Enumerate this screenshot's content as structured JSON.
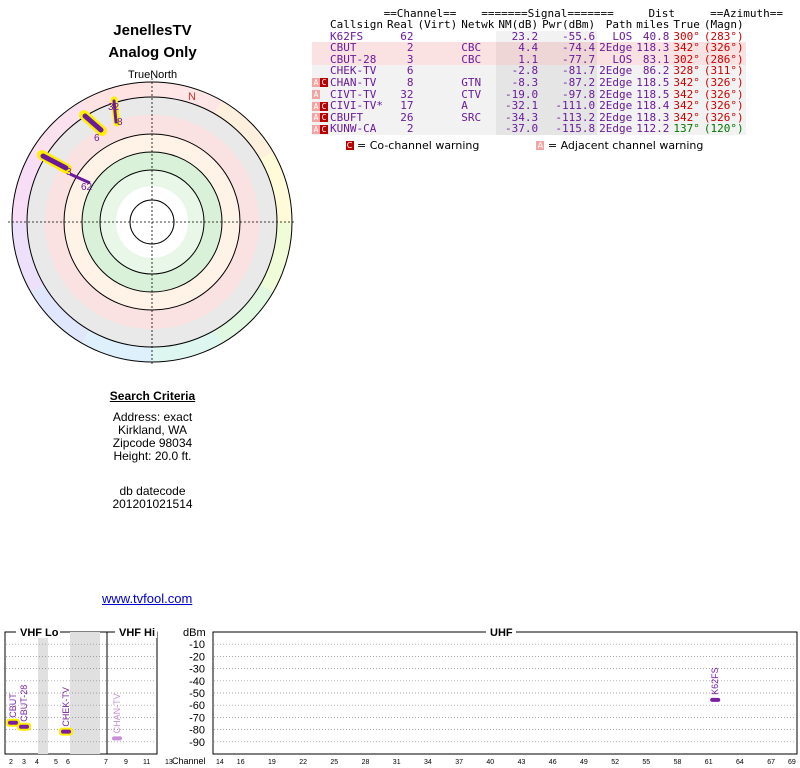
{
  "title": {
    "line1": "JenellesTV",
    "line2": "Analog Only"
  },
  "radar": {
    "north_label": "TrueNorth",
    "n_marker": "N"
  },
  "table": {
    "header_groups": {
      "channel": "==Channel==",
      "signal": "=======Signal=======",
      "dist": "Dist",
      "azimuth": "==Azimuth=="
    },
    "columns": [
      "Callsign",
      "Real",
      "(Virt)",
      "Netwk",
      "NM(dB)",
      "Pwr(dBm)",
      "Path",
      "miles",
      "True",
      "(Magn)"
    ],
    "rows": [
      {
        "warn": "",
        "callsign": "K62FS",
        "real": "62",
        "virt": "",
        "netwk": "",
        "nm": "23.2",
        "pwr": "-55.6",
        "path": "LOS",
        "dist": "40.8",
        "az_true": "300°",
        "az_magn": "(283°)",
        "bg": "#ffffff",
        "az_color": "#cc0000"
      },
      {
        "warn": "",
        "callsign": "CBUT",
        "real": "2",
        "virt": "",
        "netwk": "CBC",
        "nm": "4.4",
        "pwr": "-74.4",
        "path": "2Edge",
        "dist": "118.3",
        "az_true": "342°",
        "az_magn": "(326°)",
        "bg": "#fbe2e2",
        "az_color": "#cc0000"
      },
      {
        "warn": "",
        "callsign": "CBUT-28",
        "real": "3",
        "virt": "",
        "netwk": "CBC",
        "nm": "1.1",
        "pwr": "-77.7",
        "path": "LOS",
        "dist": "83.1",
        "az_true": "302°",
        "az_magn": "(286°)",
        "bg": "#fbe2e2",
        "az_color": "#cc0000"
      },
      {
        "warn": "",
        "callsign": "CHEK-TV",
        "real": "6",
        "virt": "",
        "netwk": "",
        "nm": "-2.8",
        "pwr": "-81.7",
        "path": "2Edge",
        "dist": "86.2",
        "az_true": "328°",
        "az_magn": "(311°)",
        "bg": "#f2f2f2",
        "az_color": "#cc0000"
      },
      {
        "warn": "AC",
        "callsign": "CHAN-TV",
        "real": "8",
        "virt": "",
        "netwk": "GTN",
        "nm": "-8.3",
        "pwr": "-87.2",
        "path": "2Edge",
        "dist": "118.5",
        "az_true": "342°",
        "az_magn": "(326°)",
        "bg": "#f2f2f2",
        "az_color": "#cc0000"
      },
      {
        "warn": "A",
        "callsign": "CIVT-TV",
        "real": "32",
        "virt": "",
        "netwk": "CTV",
        "nm": "-19.0",
        "pwr": "-97.8",
        "path": "2Edge",
        "dist": "118.5",
        "az_true": "342°",
        "az_magn": "(326°)",
        "bg": "#f2f2f2",
        "az_color": "#cc0000"
      },
      {
        "warn": "AC",
        "callsign": "CIVI-TV*",
        "real": "17",
        "virt": "",
        "netwk": "A",
        "nm": "-32.1",
        "pwr": "-111.0",
        "path": "2Edge",
        "dist": "118.4",
        "az_true": "342°",
        "az_magn": "(326°)",
        "bg": "#f2f2f2",
        "az_color": "#cc0000"
      },
      {
        "warn": "AC",
        "callsign": "CBUFT",
        "real": "26",
        "virt": "",
        "netwk": "SRC",
        "nm": "-34.3",
        "pwr": "-113.2",
        "path": "2Edge",
        "dist": "118.3",
        "az_true": "342°",
        "az_magn": "(326°)",
        "bg": "#f2f2f2",
        "az_color": "#cc0000"
      },
      {
        "warn": "AC",
        "callsign": "KUNW-CA",
        "real": "2",
        "virt": "",
        "netwk": "",
        "nm": "-37.0",
        "pwr": "-115.8",
        "path": "2Edge",
        "dist": "112.2",
        "az_true": "137°",
        "az_magn": "(120°)",
        "bg": "#f2f2f2",
        "az_color": "#007700"
      }
    ],
    "legend": {
      "co_box": "C",
      "co_text": "= Co-channel warning",
      "adj_box": "A",
      "adj_text": "= Adjacent channel warning"
    }
  },
  "criteria": {
    "heading": "Search Criteria",
    "address": "Address: exact",
    "city": "Kirkland, WA",
    "zip": "Zipcode 98034",
    "height": "Height: 20.0 ft.",
    "db_label": "db datecode",
    "db_value": "201201021514",
    "link": "www.tvfool.com"
  },
  "spectrum": {
    "sections": {
      "vhf_lo": "VHF Lo",
      "vhf_hi": "VHF Hi",
      "uhf": "UHF",
      "dbm": "dBm"
    },
    "dbm_ticks": [
      "-10",
      "-20",
      "-30",
      "-40",
      "-50",
      "-60",
      "-70",
      "-80",
      "-90"
    ],
    "channel_label": "Channel",
    "vhf_lo_ticks": [
      "2",
      "3",
      "4",
      "5",
      "6"
    ],
    "vhf_hi_ticks": [
      "7",
      "9",
      "11",
      "13"
    ],
    "uhf_ticks": [
      "14",
      "16",
      "19",
      "22",
      "25",
      "28",
      "31",
      "34",
      "37",
      "40",
      "43",
      "46",
      "49",
      "52",
      "55",
      "58",
      "61",
      "64",
      "67",
      "69"
    ],
    "markers": [
      {
        "callsign": "CBUT",
        "channel": 2,
        "dbm": -74.4,
        "color": "#7b1fa2"
      },
      {
        "callsign": "CBUT-28",
        "channel": 3,
        "dbm": -77.7,
        "color": "#7b1fa2"
      },
      {
        "callsign": "CHEK-TV",
        "channel": 6,
        "dbm": -81.7,
        "color": "#7b1fa2"
      },
      {
        "callsign": "CHAN-TV",
        "channel": 8,
        "dbm": -87.2,
        "color": "#c98fd6"
      },
      {
        "callsign": "K62FS",
        "channel": 62,
        "dbm": -55.6,
        "color": "#7b1fa2"
      }
    ]
  },
  "colors": {
    "station": "#6a1b9a",
    "warn_co": "#b80000",
    "warn_adj": "#f4a3a3",
    "highlight": "#ffee00"
  }
}
